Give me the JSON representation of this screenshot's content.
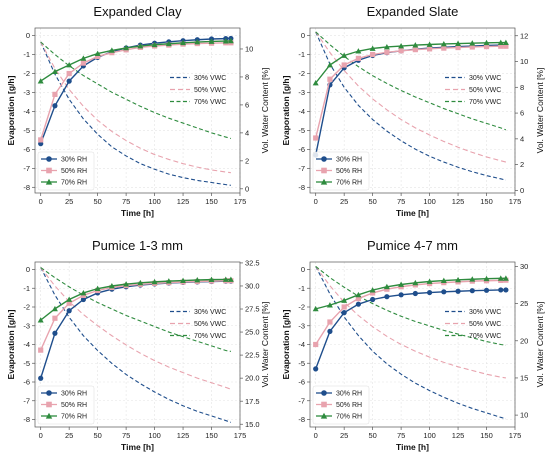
{
  "colors": {
    "rh30": "#1f4e8c",
    "rh50": "#e8a3ae",
    "rh70": "#2e8b3e"
  },
  "chart_data": [
    {
      "type": "line",
      "title": "Expanded Clay",
      "xlabel": "Time [h]",
      "ylabel": "Evaporation [g/h]",
      "ylabel_right": "Vol. Water Content [%]",
      "xlim": [
        -5,
        175
      ],
      "ylim": [
        -8.3,
        0.4
      ],
      "ylim_right": [
        -0.3,
        11.5
      ],
      "xticks": [
        0,
        25,
        50,
        75,
        100,
        125,
        150,
        175
      ],
      "yticks": [
        0,
        -1,
        -2,
        -3,
        -4,
        -5,
        -6,
        -7,
        -8
      ],
      "yticks_right": [
        0,
        2,
        4,
        6,
        8,
        10
      ],
      "legend_evaporation": {
        "position": "lower-left",
        "entries": [
          "30% RH",
          "50% RH",
          "70% RH"
        ]
      },
      "legend_vwc": {
        "position": "center-right",
        "entries": [
          "30% VWC",
          "50% VWC",
          "70% VWC"
        ]
      },
      "x": [
        0,
        12.5,
        25,
        37.5,
        50,
        62.5,
        75,
        87.5,
        100,
        112.5,
        125,
        137.5,
        150,
        162.5,
        167
      ],
      "evaporation": [
        {
          "name": "30% RH",
          "values": [
            -5.7,
            -3.7,
            -2.4,
            -1.6,
            -1.15,
            -0.85,
            -0.65,
            -0.5,
            -0.4,
            -0.33,
            -0.27,
            -0.22,
            -0.18,
            -0.16,
            -0.15
          ]
        },
        {
          "name": "50% RH",
          "values": [
            -5.5,
            -3.1,
            -2.0,
            -1.45,
            -1.1,
            -0.9,
            -0.75,
            -0.62,
            -0.55,
            -0.5,
            -0.45,
            -0.42,
            -0.4,
            -0.38,
            -0.38
          ]
        },
        {
          "name": "70% RH",
          "values": [
            -2.4,
            -1.9,
            -1.55,
            -1.2,
            -0.95,
            -0.78,
            -0.65,
            -0.55,
            -0.48,
            -0.43,
            -0.38,
            -0.34,
            -0.31,
            -0.29,
            -0.28
          ]
        }
      ],
      "vwc": [
        {
          "name": "30% VWC",
          "values": [
            10.5,
            8.2,
            6.4,
            5.0,
            3.9,
            3.0,
            2.35,
            1.8,
            1.4,
            1.05,
            0.8,
            0.6,
            0.45,
            0.3,
            0.25
          ]
        },
        {
          "name": "50% VWC",
          "values": [
            10.5,
            8.6,
            7.1,
            5.9,
            4.9,
            4.1,
            3.45,
            2.9,
            2.45,
            2.1,
            1.8,
            1.55,
            1.35,
            1.2,
            1.15
          ]
        },
        {
          "name": "70% VWC",
          "values": [
            10.5,
            9.6,
            8.8,
            8.1,
            7.5,
            6.9,
            6.4,
            5.9,
            5.45,
            5.05,
            4.7,
            4.35,
            4.0,
            3.7,
            3.6
          ]
        }
      ]
    },
    {
      "type": "line",
      "title": "Expanded Slate",
      "xlabel": "Time [h]",
      "ylabel": "Evaporation [g/h]",
      "ylabel_right": "Vol. Water Content [%]",
      "xlim": [
        -5,
        175
      ],
      "ylim": [
        -8.3,
        0.4
      ],
      "ylim_right": [
        -0.2,
        12.6
      ],
      "xticks": [
        0,
        25,
        50,
        75,
        100,
        125,
        150,
        175
      ],
      "yticks": [
        0,
        -1,
        -2,
        -3,
        -4,
        -5,
        -6,
        -7,
        -8
      ],
      "yticks_right": [
        0,
        2,
        4,
        6,
        8,
        10,
        12
      ],
      "legend_evaporation": {
        "position": "lower-left",
        "entries": [
          "30% RH",
          "50% RH",
          "70% RH"
        ]
      },
      "legend_vwc": {
        "position": "center-right",
        "entries": [
          "30% VWC",
          "50% VWC",
          "70% VWC"
        ]
      },
      "x": [
        0,
        12.5,
        25,
        37.5,
        50,
        62.5,
        75,
        87.5,
        100,
        112.5,
        125,
        137.5,
        150,
        162.5,
        167
      ],
      "evaporation": [
        {
          "name": "30% RH",
          "values": [
            -6.3,
            -2.6,
            -1.7,
            -1.3,
            -1.05,
            -0.9,
            -0.8,
            -0.72,
            -0.66,
            -0.62,
            -0.58,
            -0.55,
            -0.52,
            -0.5,
            -0.5
          ]
        },
        {
          "name": "50% RH",
          "values": [
            -5.4,
            -2.3,
            -1.55,
            -1.2,
            -1.0,
            -0.88,
            -0.8,
            -0.74,
            -0.7,
            -0.66,
            -0.63,
            -0.6,
            -0.58,
            -0.56,
            -0.56
          ]
        },
        {
          "name": "70% RH",
          "values": [
            -2.5,
            -1.55,
            -1.05,
            -0.82,
            -0.68,
            -0.6,
            -0.55,
            -0.5,
            -0.47,
            -0.44,
            -0.42,
            -0.4,
            -0.38,
            -0.37,
            -0.37
          ]
        }
      ],
      "vwc": [
        {
          "name": "30% VWC",
          "values": [
            12.3,
            9.8,
            8.0,
            6.6,
            5.5,
            4.6,
            3.85,
            3.2,
            2.65,
            2.2,
            1.8,
            1.45,
            1.15,
            0.9,
            0.8
          ]
        },
        {
          "name": "50% VWC",
          "values": [
            12.3,
            10.7,
            9.3,
            8.1,
            7.1,
            6.25,
            5.5,
            4.85,
            4.3,
            3.8,
            3.35,
            2.95,
            2.6,
            2.3,
            2.2
          ]
        },
        {
          "name": "70% VWC",
          "values": [
            12.3,
            11.3,
            10.4,
            9.6,
            8.9,
            8.3,
            7.75,
            7.25,
            6.8,
            6.35,
            5.95,
            5.55,
            5.2,
            4.85,
            4.7
          ]
        }
      ]
    },
    {
      "type": "line",
      "title": "Pumice 1-3 mm",
      "xlabel": "Time [h]",
      "ylabel": "Evaporation [g/h]",
      "ylabel_right": "Vol. Water Content [%]",
      "xlim": [
        -5,
        175
      ],
      "ylim": [
        -8.4,
        0.4
      ],
      "ylim_right": [
        14.7,
        32.6
      ],
      "xticks": [
        0,
        25,
        50,
        75,
        100,
        125,
        150,
        175
      ],
      "yticks": [
        0,
        -1,
        -2,
        -3,
        -4,
        -5,
        -6,
        -7,
        -8
      ],
      "yticks_right": [
        15.0,
        17.5,
        20.0,
        22.5,
        25.0,
        27.5,
        30.0,
        32.5
      ],
      "legend_evaporation": {
        "position": "lower-left",
        "entries": [
          "30% RH",
          "50% RH",
          "70% RH"
        ]
      },
      "legend_vwc": {
        "position": "center-right",
        "entries": [
          "30% VWC",
          "50% VWC",
          "70% VWC"
        ]
      },
      "x": [
        0,
        12.5,
        25,
        37.5,
        50,
        62.5,
        75,
        87.5,
        100,
        112.5,
        125,
        137.5,
        150,
        162.5,
        167
      ],
      "evaporation": [
        {
          "name": "30% RH",
          "values": [
            -5.8,
            -3.4,
            -2.2,
            -1.6,
            -1.25,
            -1.05,
            -0.92,
            -0.83,
            -0.77,
            -0.72,
            -0.69,
            -0.66,
            -0.64,
            -0.62,
            -0.62
          ]
        },
        {
          "name": "50% RH",
          "values": [
            -4.3,
            -2.6,
            -1.8,
            -1.38,
            -1.12,
            -0.96,
            -0.86,
            -0.79,
            -0.74,
            -0.7,
            -0.67,
            -0.64,
            -0.62,
            -0.6,
            -0.6
          ]
        },
        {
          "name": "70% RH",
          "values": [
            -2.7,
            -2.1,
            -1.6,
            -1.25,
            -1.02,
            -0.88,
            -0.78,
            -0.71,
            -0.66,
            -0.62,
            -0.59,
            -0.56,
            -0.54,
            -0.53,
            -0.53
          ]
        }
      ],
      "vwc": [
        {
          "name": "30% VWC",
          "values": [
            32.0,
            29.0,
            26.6,
            24.6,
            23.0,
            21.6,
            20.4,
            19.4,
            18.5,
            17.7,
            17.0,
            16.4,
            15.9,
            15.4,
            15.2
          ]
        },
        {
          "name": "50% VWC",
          "values": [
            32.0,
            30.0,
            28.3,
            26.9,
            25.7,
            24.6,
            23.6,
            22.7,
            21.9,
            21.2,
            20.6,
            20.0,
            19.5,
            19.0,
            18.8
          ]
        },
        {
          "name": "70% VWC",
          "values": [
            32.0,
            30.9,
            29.9,
            29.0,
            28.2,
            27.5,
            26.8,
            26.2,
            25.6,
            25.0,
            24.5,
            24.0,
            23.5,
            23.0,
            22.9
          ]
        }
      ]
    },
    {
      "type": "line",
      "title": "Pumice 4-7 mm",
      "xlabel": "Time [h]",
      "ylabel": "Evaporation [g/h]",
      "ylabel_right": "Vol. Water Content [%]",
      "xlim": [
        -5,
        175
      ],
      "ylim": [
        -8.4,
        0.4
      ],
      "ylim_right": [
        8.4,
        30.6
      ],
      "xticks": [
        0,
        25,
        50,
        75,
        100,
        125,
        150,
        175
      ],
      "yticks": [
        0,
        -1,
        -2,
        -3,
        -4,
        -5,
        -6,
        -7,
        -8
      ],
      "yticks_right": [
        10,
        15,
        20,
        25,
        30
      ],
      "legend_evaporation": {
        "position": "lower-left",
        "entries": [
          "30% RH",
          "50% RH",
          "70% RH"
        ]
      },
      "legend_vwc": {
        "position": "center-right",
        "entries": [
          "30% VWC",
          "50% VWC",
          "70% VWC"
        ]
      },
      "x": [
        0,
        12.5,
        25,
        37.5,
        50,
        62.5,
        75,
        87.5,
        100,
        112.5,
        125,
        137.5,
        150,
        162.5,
        167
      ],
      "evaporation": [
        {
          "name": "30% RH",
          "values": [
            -5.3,
            -3.3,
            -2.3,
            -1.85,
            -1.6,
            -1.45,
            -1.35,
            -1.28,
            -1.23,
            -1.19,
            -1.16,
            -1.13,
            -1.11,
            -1.09,
            -1.09
          ]
        },
        {
          "name": "50% RH",
          "values": [
            -4.0,
            -2.8,
            -2.0,
            -1.55,
            -1.25,
            -1.05,
            -0.92,
            -0.82,
            -0.75,
            -0.7,
            -0.66,
            -0.62,
            -0.6,
            -0.58,
            -0.57
          ]
        },
        {
          "name": "70% RH",
          "values": [
            -2.1,
            -1.9,
            -1.65,
            -1.35,
            -1.1,
            -0.92,
            -0.8,
            -0.71,
            -0.64,
            -0.59,
            -0.55,
            -0.52,
            -0.49,
            -0.47,
            -0.47
          ]
        }
      ],
      "vwc": [
        {
          "name": "30% VWC",
          "values": [
            30.0,
            26.3,
            23.2,
            20.7,
            18.6,
            16.9,
            15.5,
            14.3,
            13.3,
            12.4,
            11.6,
            10.9,
            10.3,
            9.7,
            9.5
          ]
        },
        {
          "name": "50% VWC",
          "values": [
            30.0,
            27.4,
            25.2,
            23.4,
            21.9,
            20.6,
            19.5,
            18.6,
            17.8,
            17.1,
            16.5,
            16.0,
            15.5,
            15.1,
            15.0
          ]
        },
        {
          "name": "70% VWC",
          "values": [
            30.0,
            28.5,
            27.2,
            26.0,
            25.0,
            24.1,
            23.3,
            22.6,
            22.0,
            21.4,
            20.9,
            20.4,
            19.9,
            19.5,
            19.4
          ]
        }
      ]
    }
  ]
}
